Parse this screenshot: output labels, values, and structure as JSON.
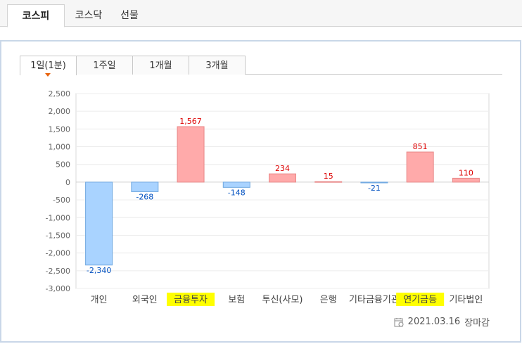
{
  "market_tabs": [
    {
      "label": "코스피",
      "active": true
    },
    {
      "label": "코스닥",
      "active": false
    },
    {
      "label": "선물",
      "active": false
    }
  ],
  "period_tabs": [
    {
      "label": "1일(1분)",
      "active": true
    },
    {
      "label": "1주일",
      "active": false
    },
    {
      "label": "1개월",
      "active": false
    },
    {
      "label": "3개월",
      "active": false
    }
  ],
  "footer": {
    "date": "2021.03.16",
    "status": "장마감",
    "icon": "calendar-icon"
  },
  "colors": {
    "positive_fill": "#ffaaaa",
    "positive_stroke": "#e88888",
    "negative_fill": "#a9d3ff",
    "negative_stroke": "#6fa8e0",
    "positive_label": "#dd0000",
    "negative_label": "#0050c0",
    "highlight": "#ffff00"
  },
  "chart_data": {
    "type": "bar",
    "categories": [
      "개인",
      "외국인",
      "금융투자",
      "보험",
      "투신(사모)",
      "은행",
      "기타금융기관",
      "연기금등",
      "기타법인"
    ],
    "highlighted_categories": [
      "금융투자",
      "연기금등"
    ],
    "values": [
      -2340,
      -268,
      1567,
      -148,
      234,
      15,
      -21,
      851,
      110
    ],
    "value_labels": [
      "-2,340",
      "-268",
      "1,567",
      "-148",
      "234",
      "15",
      "-21",
      "851",
      "110"
    ],
    "y_ticks": [
      2500,
      2000,
      1500,
      1000,
      500,
      0,
      -500,
      -1000,
      -1500,
      -2000,
      -2500,
      -3000
    ],
    "y_tick_labels": [
      "2,500",
      "2,000",
      "1,500",
      "1,000",
      "500",
      "0",
      "-500",
      "-1,000",
      "-1,500",
      "-2,000",
      "-2,500",
      "-3,000"
    ],
    "ylim": [
      -3000,
      2500
    ],
    "grid": true,
    "title": "",
    "xlabel": "",
    "ylabel": ""
  }
}
